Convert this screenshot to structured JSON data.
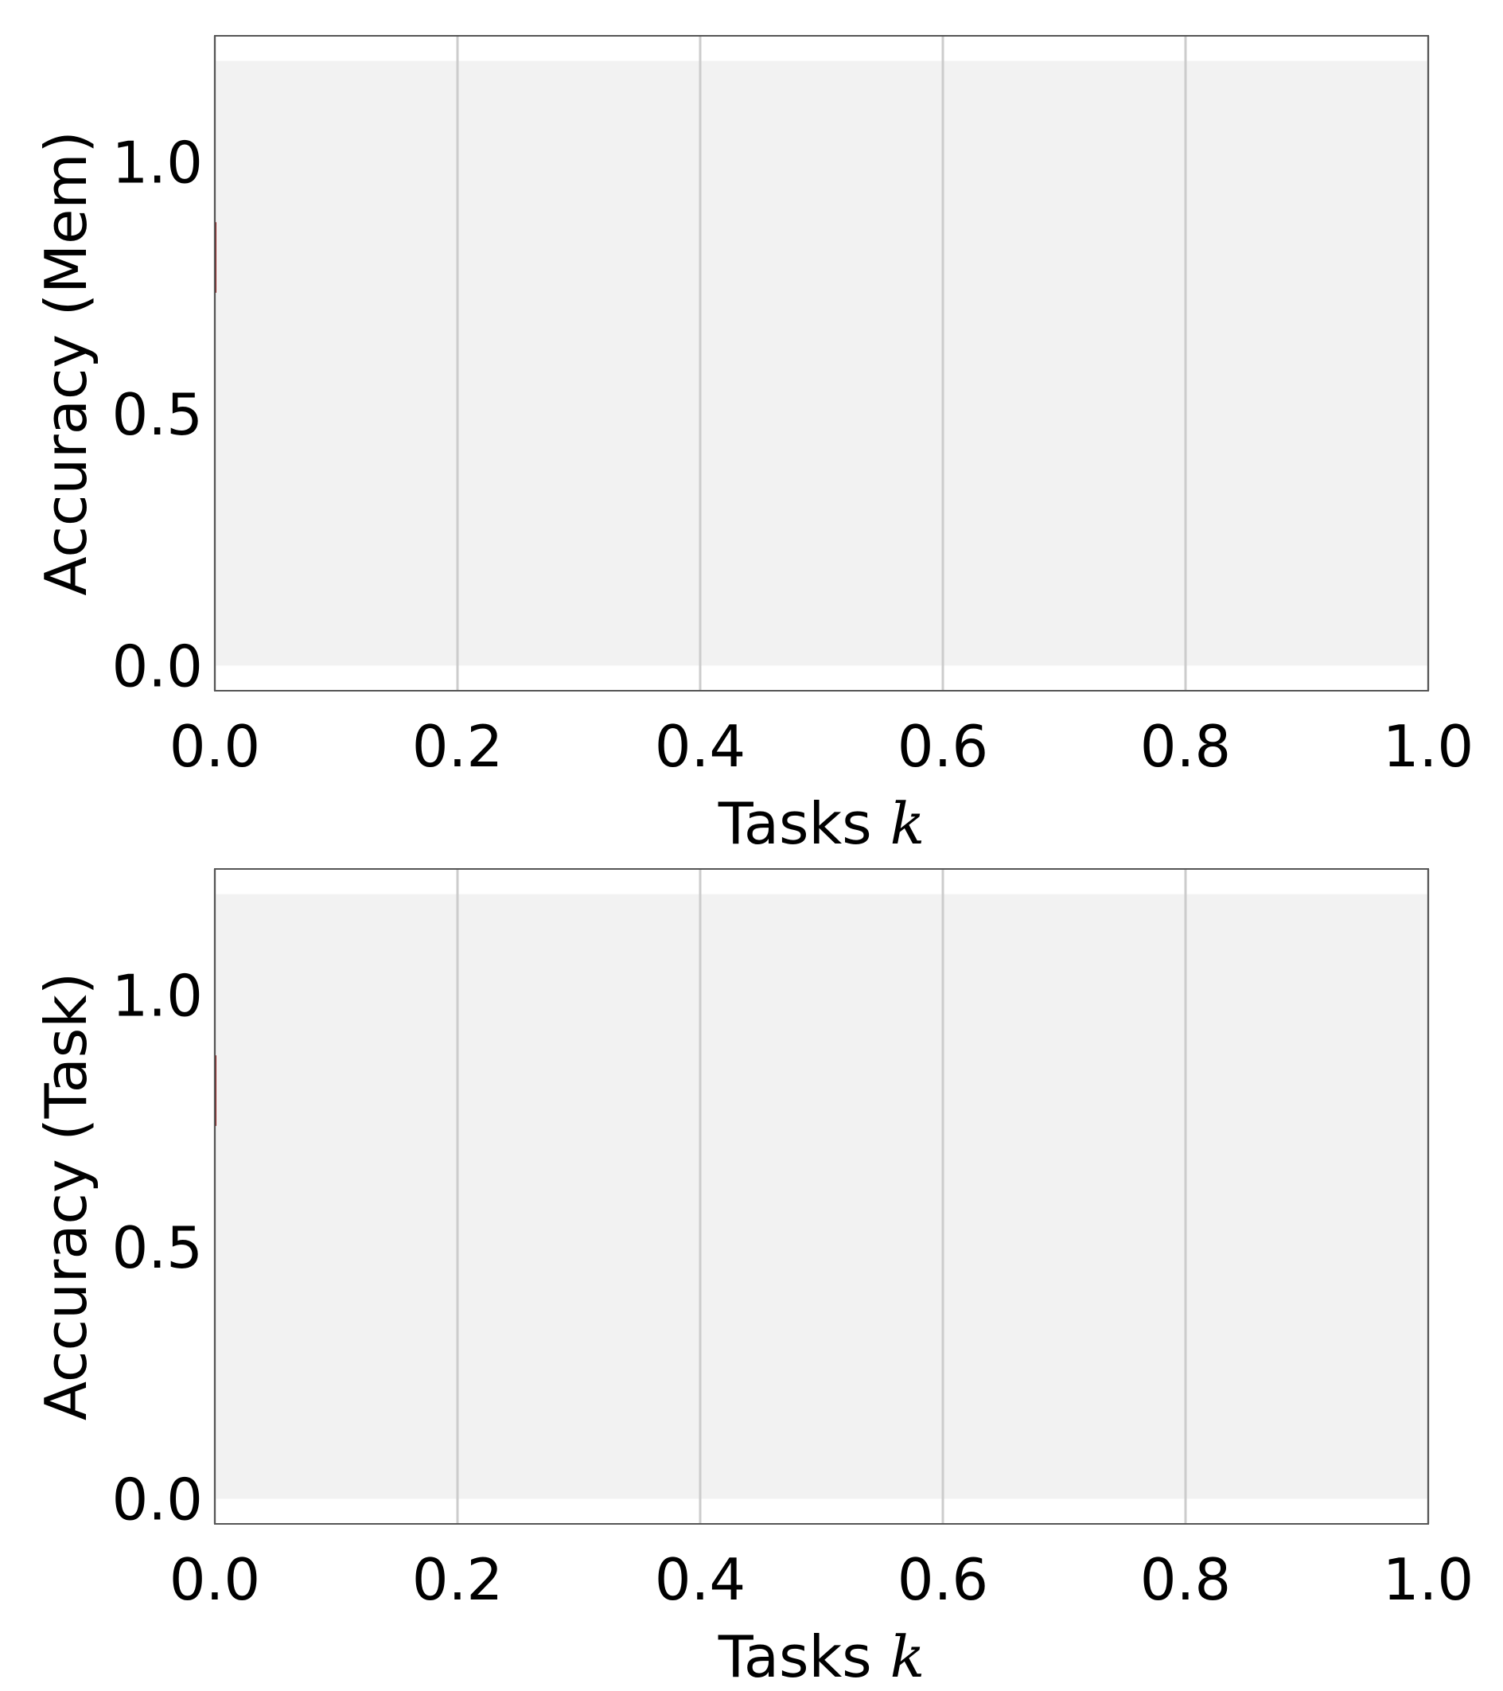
{
  "chart_data": [
    {
      "type": "line",
      "title": "",
      "xlabel": "Tasks",
      "xlabel_var": "k",
      "ylabel": "Accuracy (Mem)",
      "xlim": [
        0.0,
        1.0
      ],
      "ylim": [
        -0.05,
        1.25
      ],
      "xticks": [
        "0.0",
        "0.2",
        "0.4",
        "0.6",
        "0.8",
        "1.0"
      ],
      "yticks": [
        "0.0",
        "0.5",
        "1.0"
      ],
      "grid": "vertical",
      "band": {
        "y_min": 0.0,
        "y_max": 1.2,
        "color": "#f2f2f2"
      },
      "marker": {
        "x": 0.0,
        "y_min": 0.74,
        "y_max": 0.88,
        "color": "#8b1a1a"
      },
      "series": []
    },
    {
      "type": "line",
      "title": "",
      "xlabel": "Tasks",
      "xlabel_var": "k",
      "ylabel": "Accuracy (Task)",
      "xlim": [
        0.0,
        1.0
      ],
      "ylim": [
        -0.05,
        1.25
      ],
      "xticks": [
        "0.0",
        "0.2",
        "0.4",
        "0.6",
        "0.8",
        "1.0"
      ],
      "yticks": [
        "0.0",
        "0.5",
        "1.0"
      ],
      "grid": "vertical",
      "band": {
        "y_min": 0.0,
        "y_max": 1.2,
        "color": "#f2f2f2"
      },
      "marker": {
        "x": 0.0,
        "y_min": 0.74,
        "y_max": 0.88,
        "color": "#8b1a1a"
      },
      "series": []
    }
  ],
  "colors": {
    "grid": "#cccccc",
    "frame": "#555555",
    "background": "#ffffff"
  }
}
